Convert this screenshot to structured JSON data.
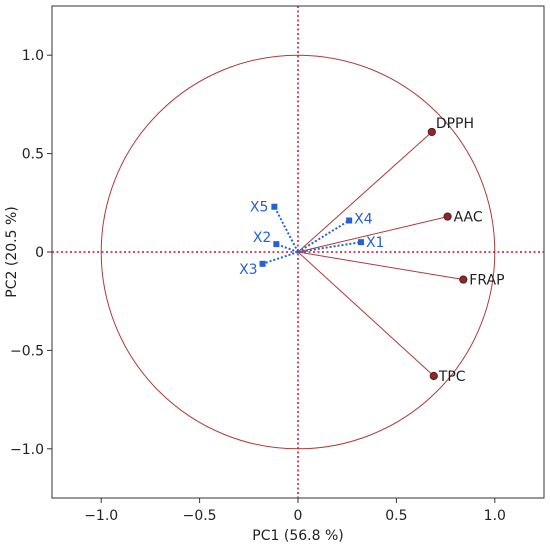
{
  "chart_data": {
    "type": "scatter",
    "subtype": "pca-correlation-circle",
    "title": "",
    "xlabel": "PC1  (56.8 %)",
    "ylabel": "PC2  (20.5 %)",
    "xlim": [
      -1.25,
      1.25
    ],
    "ylim": [
      -1.25,
      1.25
    ],
    "x_ticks": [
      -1.0,
      -0.5,
      0,
      0.5,
      1.0
    ],
    "y_ticks": [
      -1.0,
      -0.5,
      0,
      0.5,
      1.0
    ],
    "x_tick_labels": [
      "−1.0",
      "−0.5",
      "0",
      "0.5",
      "1.0"
    ],
    "y_tick_labels": [
      "−1.0",
      "−0.5",
      "0",
      "0.5",
      "1.0"
    ],
    "unit_circle": true,
    "zero_lines": true,
    "grid": false,
    "series": [
      {
        "marker": "circle",
        "color": "#b03a3a",
        "line": "solid",
        "points": [
          {
            "label": "DPPH",
            "x": 0.68,
            "y": 0.61
          },
          {
            "label": "AAC",
            "x": 0.76,
            "y": 0.18
          },
          {
            "label": "FRAP",
            "x": 0.84,
            "y": -0.14
          },
          {
            "label": "TPC",
            "x": 0.69,
            "y": -0.63
          }
        ]
      },
      {
        "marker": "square",
        "color": "#2462d4",
        "line": "dotted",
        "points": [
          {
            "label": "X1",
            "x": 0.32,
            "y": 0.05
          },
          {
            "label": "X2",
            "x": -0.11,
            "y": 0.04
          },
          {
            "label": "X3",
            "x": -0.18,
            "y": -0.06
          },
          {
            "label": "X4",
            "x": 0.26,
            "y": 0.16
          },
          {
            "label": "X5",
            "x": -0.12,
            "y": 0.23
          }
        ]
      }
    ],
    "colors": {
      "axis_zero_line": "#c8102e",
      "circle": "#b03a3a",
      "frame": "#333333"
    }
  }
}
